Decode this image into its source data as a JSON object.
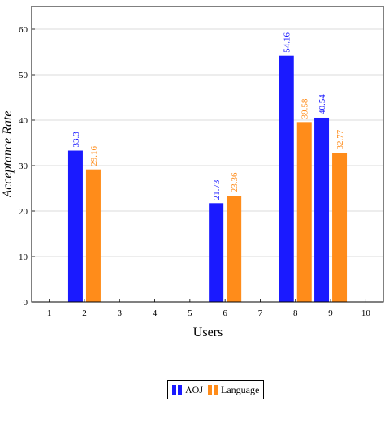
{
  "chart_data": {
    "type": "bar",
    "x": [
      1,
      2,
      3,
      4,
      5,
      6,
      7,
      8,
      9,
      10
    ],
    "categories": [
      "1",
      "2",
      "3",
      "4",
      "5",
      "6",
      "7",
      "8",
      "9",
      "10"
    ],
    "series": [
      {
        "name": "AOJ",
        "color": "#1a1aff",
        "points": [
          {
            "x": 2,
            "value": 33.3,
            "label": "33.3"
          },
          {
            "x": 6,
            "value": 21.73,
            "label": "21.73"
          },
          {
            "x": 8,
            "value": 54.16,
            "label": "54.16"
          },
          {
            "x": 9,
            "value": 40.54,
            "label": "40.54"
          }
        ]
      },
      {
        "name": "Language",
        "color": "#ff8c1a",
        "points": [
          {
            "x": 2,
            "value": 29.16,
            "label": "29.16"
          },
          {
            "x": 6,
            "value": 23.36,
            "label": "23.36"
          },
          {
            "x": 8,
            "value": 39.58,
            "label": "39.58"
          },
          {
            "x": 9,
            "value": 32.77,
            "label": "32.77"
          }
        ]
      }
    ],
    "xlabel": "Users",
    "ylabel": "Acceptance Rate",
    "xlim": [
      0.5,
      10.5
    ],
    "ylim": [
      0,
      65
    ],
    "yticks": [
      0,
      10,
      20,
      30,
      40,
      50,
      60
    ],
    "grid": "horizontal",
    "legend": "bottom-center"
  }
}
